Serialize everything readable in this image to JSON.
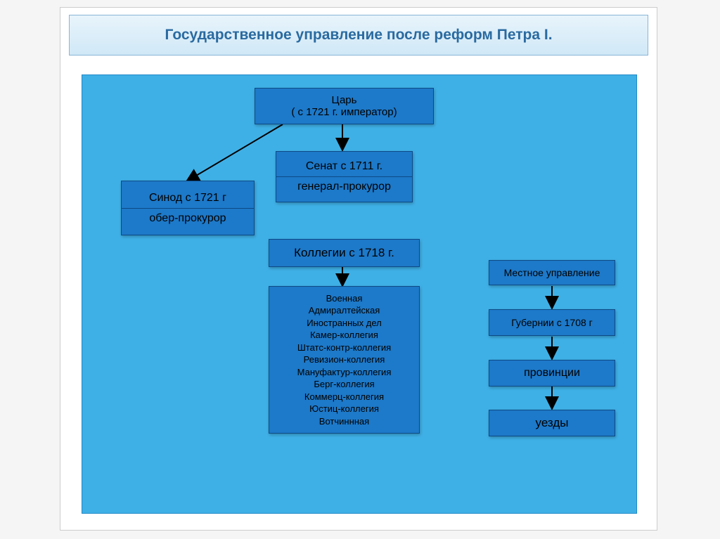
{
  "title": "Государственное управление после реформ Петра I.",
  "colors": {
    "canvas_bg": "#3fb0e6",
    "box_bg": "#1d79c9",
    "box_border": "#0d4a85",
    "title_text": "#2a6aa0",
    "title_bg_top": "#e8f4fb",
    "title_bg_bot": "#d0e8f7",
    "arrow": "#000000"
  },
  "tsar": {
    "line1": "Царь",
    "line2": "( с 1721 г. император)"
  },
  "senat": {
    "top": "Сенат с 1711 г.",
    "bottom": "генерал-прокурор"
  },
  "sinod": {
    "top": "Синод с 1721 г",
    "bottom": "обер-прокурор"
  },
  "collegii": "Коллегии с 1718 г.",
  "collegii_list": [
    "Военная",
    "Адмиралтейская",
    "Иностранных дел",
    "Камер-коллегия",
    "Штатс-контр-коллегия",
    "Ревизион-коллегия",
    "Мануфактур-коллегия",
    "Берг-коллегия",
    "Коммерц-коллегия",
    "Юстиц-коллегия",
    "Вотчиннная"
  ],
  "mestnoe": "Местное управление",
  "gubernii": "Губернии с 1708 г",
  "provincii": "провинции",
  "uezdy": "уезды"
}
